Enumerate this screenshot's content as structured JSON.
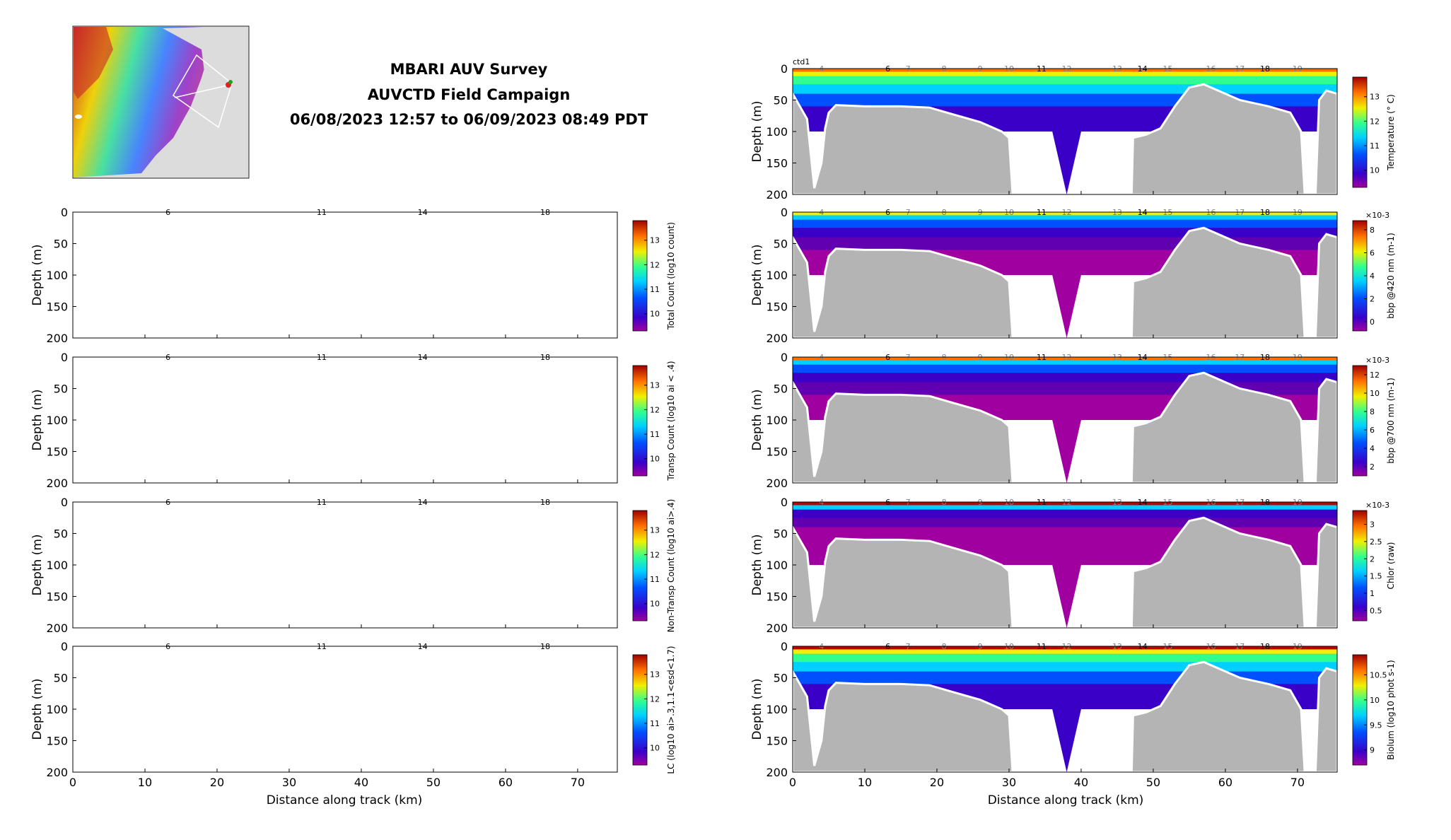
{
  "header": {
    "title_lines": [
      "MBARI AUV Survey",
      "AUVCTD Field Campaign",
      "06/08/2023 12:57 to 06/09/2023 08:49 PDT"
    ]
  },
  "map": {
    "description_icon": "bathymetry-map-inset"
  },
  "chart_data": {
    "type": "heatmap",
    "x_axis": {
      "label": "Distance along track (km)",
      "range": [
        0,
        75.5
      ],
      "ticks": [
        "0",
        "10",
        "20",
        "30",
        "40",
        "50",
        "60",
        "70"
      ]
    },
    "y_axis": {
      "label": "Depth (m)",
      "range": [
        0,
        200
      ],
      "inverted": true,
      "ticks": [
        "0",
        "50",
        "100",
        "150",
        "200"
      ]
    },
    "waypoint_labels": [
      {
        "x": 4,
        "label": "4"
      },
      {
        "x": 13.2,
        "label": "6"
      },
      {
        "x": 16,
        "label": "7"
      },
      {
        "x": 21,
        "label": "8"
      },
      {
        "x": 26,
        "label": "9"
      },
      {
        "x": 30,
        "label": "10"
      },
      {
        "x": 34.5,
        "label": "11"
      },
      {
        "x": 38,
        "label": "12"
      },
      {
        "x": 45,
        "label": "13"
      },
      {
        "x": 48.5,
        "label": "14"
      },
      {
        "x": 52,
        "label": "15"
      },
      {
        "x": 58,
        "label": "16"
      },
      {
        "x": 62,
        "label": "17"
      },
      {
        "x": 65.5,
        "label": "18"
      },
      {
        "x": 70,
        "label": "19"
      }
    ],
    "left_panels": [
      {
        "name": "total-count",
        "cb_label": "Total Count (log10 count)",
        "cb_ticks": [
          "10",
          "11",
          "12",
          "13"
        ],
        "cb_range": [
          9.3,
          13.8
        ],
        "waypoints": [
          "6",
          "11",
          "14",
          "18"
        ]
      },
      {
        "name": "transp-count",
        "cb_label": "Transp Count (log10 ai < .4)",
        "cb_ticks": [
          "10",
          "11",
          "12",
          "13"
        ],
        "cb_range": [
          9.3,
          13.8
        ],
        "waypoints": [
          "6",
          "11",
          "14",
          "18"
        ]
      },
      {
        "name": "non-transp-count",
        "cb_label": "Non-Transp Count (log10 ai>.4)",
        "cb_ticks": [
          "10",
          "11",
          "12",
          "13"
        ],
        "cb_range": [
          9.3,
          13.8
        ],
        "waypoints": [
          "6",
          "11",
          "14",
          "18"
        ]
      },
      {
        "name": "lc",
        "cb_label": "LC (log10 ai>.3,1.1<esd<1.7)",
        "cb_ticks": [
          "10",
          "11",
          "12",
          "13"
        ],
        "cb_range": [
          9.3,
          13.8
        ],
        "waypoints": [
          "6",
          "11",
          "14",
          "18"
        ]
      }
    ],
    "right_panels": [
      {
        "name": "temperature",
        "cb_label": "Temperature (° C)",
        "cb_ticks": [
          "10",
          "11",
          "12",
          "13"
        ],
        "cb_range": [
          9.3,
          13.8
        ],
        "exponent": "",
        "corner_label": "ctd1"
      },
      {
        "name": "bbp420",
        "cb_label": "bbp @420 nm (m-1)",
        "cb_ticks": [
          "0",
          "2",
          "4",
          "6",
          "8"
        ],
        "cb_range": [
          -0.8,
          8.8
        ],
        "exponent": "×10-3"
      },
      {
        "name": "bbp700",
        "cb_label": "bbp @700 nm (m-1)",
        "cb_ticks": [
          "2",
          "4",
          "6",
          "8",
          "10",
          "12"
        ],
        "cb_range": [
          1,
          13
        ],
        "exponent": "×10-3"
      },
      {
        "name": "chlor",
        "cb_label": "Chlor (raw)",
        "cb_ticks": [
          "0.5",
          "1",
          "1.5",
          "2",
          "2.5",
          "3"
        ],
        "cb_range": [
          0.2,
          3.4
        ],
        "exponent": "×10-3"
      },
      {
        "name": "biolum",
        "cb_label": "Biolum (log10 phot s-1)",
        "cb_ticks": [
          "9",
          "9.5",
          "10",
          "10.5"
        ],
        "cb_range": [
          8.7,
          10.9
        ],
        "exponent": ""
      }
    ],
    "bathymetry_profile_km_depth": [
      [
        0,
        40
      ],
      [
        2,
        80
      ],
      [
        3,
        190
      ],
      [
        4,
        150
      ],
      [
        4.5,
        95
      ],
      [
        5,
        70
      ],
      [
        6,
        58
      ],
      [
        10,
        60
      ],
      [
        15,
        60
      ],
      [
        19,
        62
      ],
      [
        22,
        72
      ],
      [
        26,
        85
      ],
      [
        29,
        100
      ],
      [
        30,
        110
      ],
      [
        30.5,
        200
      ],
      [
        47,
        200
      ],
      [
        47.2,
        110
      ],
      [
        49,
        105
      ],
      [
        51,
        95
      ],
      [
        53,
        60
      ],
      [
        55,
        30
      ],
      [
        57,
        25
      ],
      [
        59,
        35
      ],
      [
        62,
        50
      ],
      [
        66,
        60
      ],
      [
        69,
        70
      ],
      [
        70.5,
        100
      ],
      [
        71,
        200
      ],
      [
        72.5,
        200
      ],
      [
        73,
        50
      ],
      [
        74,
        35
      ],
      [
        75.5,
        40
      ]
    ]
  }
}
